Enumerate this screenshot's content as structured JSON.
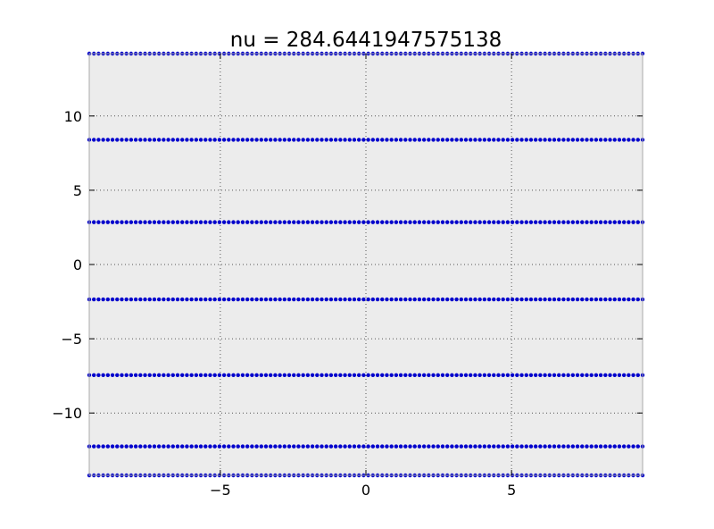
{
  "chart_data": {
    "type": "scatter",
    "title": "nu = 284.6441947575138",
    "xlabel": "",
    "ylabel": "",
    "xlim": [
      -9.5,
      9.5
    ],
    "ylim": [
      -14.2,
      14.2
    ],
    "x_ticks": [
      -5,
      0,
      5
    ],
    "x_tick_labels": [
      "−5",
      "0",
      "5"
    ],
    "y_ticks": [
      10,
      5,
      0,
      -5,
      -10
    ],
    "y_tick_labels": [
      "10",
      "5",
      "0",
      "−5",
      "−10"
    ],
    "grid": true,
    "legend": "none",
    "marker_color": "#0000cc",
    "background_color": "#ececec",
    "series": [
      {
        "x": {
          "start": -9.5,
          "end": 9.5,
          "count": 120
        },
        "y_levels": [
          14.2,
          8.4,
          2.85,
          -2.35,
          -7.45,
          -12.25,
          -14.2
        ]
      }
    ]
  }
}
